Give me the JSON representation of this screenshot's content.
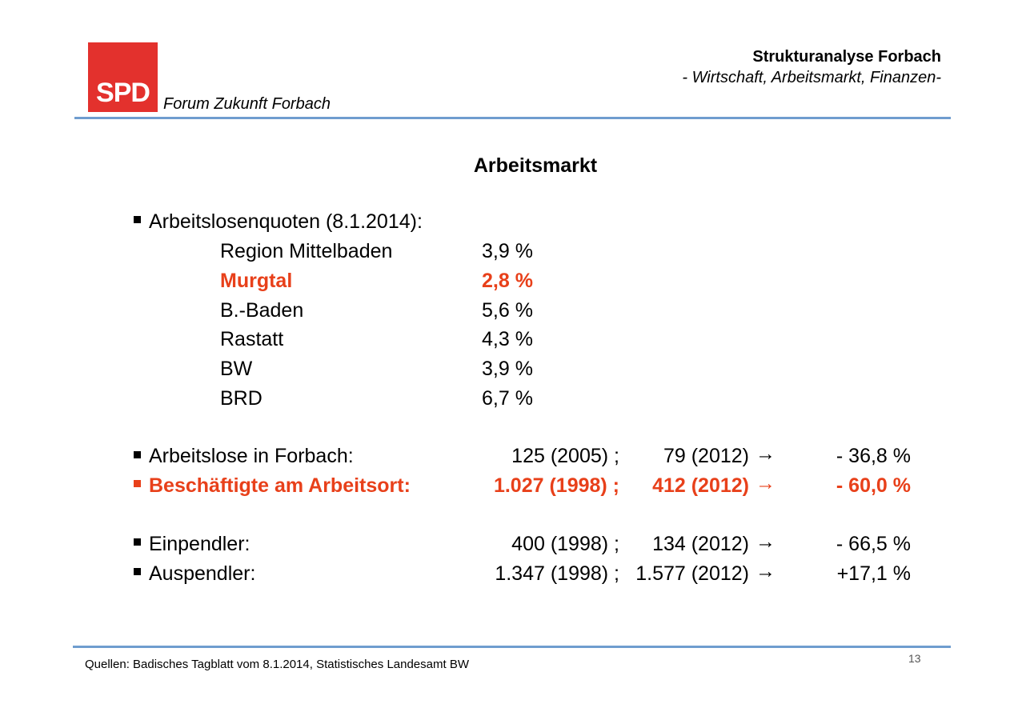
{
  "header": {
    "logo_text": "SPD",
    "subtitle_left": "Forum Zukunft Forbach",
    "title": "Strukturanalyse Forbach",
    "subtitle": "- Wirtschaft, Arbeitsmarkt, Finanzen-"
  },
  "slide": {
    "title": "Arbeitsmarkt",
    "quote_heading": "Arbeitslosenquoten (8.1.2014):",
    "quotes": [
      {
        "region": "Region Mittelbaden",
        "value": "3,9 %"
      },
      {
        "region": "Murgtal",
        "value": "2,8 %"
      },
      {
        "region": "B.-Baden",
        "value": "5,6 %"
      },
      {
        "region": "Rastatt",
        "value": "4,3 %"
      },
      {
        "region": "BW",
        "value": "3,9 %"
      },
      {
        "region": "BRD",
        "value": "6,7 %"
      }
    ],
    "stats": [
      {
        "label": "Arbeitslose in Forbach:",
        "first": "125 (2005) ;",
        "second": "79 (2012)",
        "arrow": "→",
        "change": "- 36,8 %"
      },
      {
        "label": "Beschäftigte am Arbeitsort:",
        "first": "1.027 (1998) ;",
        "second": "412 (2012)",
        "arrow": "→",
        "change": "- 60,0 %"
      },
      {
        "label": "Einpendler:",
        "first": "400 (1998) ;",
        "second": "134 (2012)",
        "arrow": "→",
        "change": "- 66,5 %"
      },
      {
        "label": "Auspendler:",
        "first": "1.347 (1998) ;",
        "second": "1.577 (2012)",
        "arrow": "→",
        "change": "+17,1 %"
      }
    ]
  },
  "footer": {
    "source": "Quellen: Badisches Tagblatt vom 8.1.2014, Statistisches Landesamt BW",
    "page": "13"
  },
  "colors": {
    "spd_red": "#e3312d",
    "highlight": "#e8401a",
    "rule": "#6f9dcf"
  }
}
